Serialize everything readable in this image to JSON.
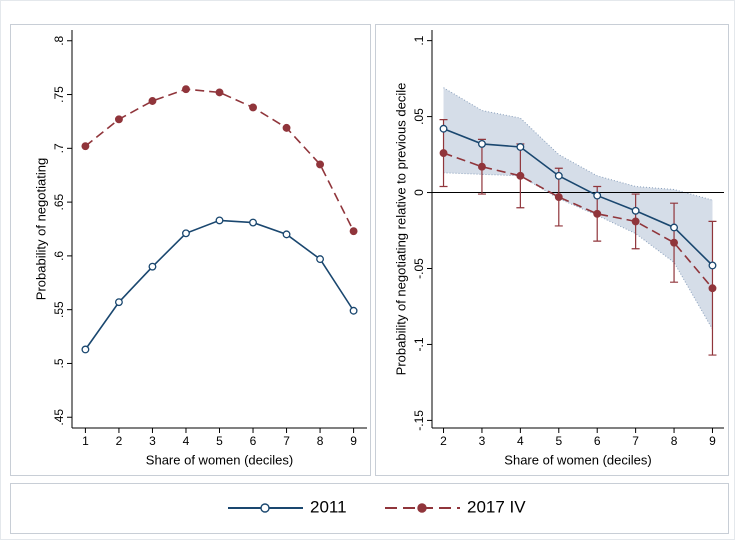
{
  "chart_data": [
    {
      "type": "line",
      "xlabel": "Share of women (deciles)",
      "ylabel": "Probability of negotiating",
      "x": [
        1,
        2,
        3,
        4,
        5,
        6,
        7,
        8,
        9
      ],
      "series": [
        {
          "name": "2011",
          "color": "#1a476f",
          "marker": "hollow",
          "dash": "solid",
          "values": [
            0.513,
            0.557,
            0.59,
            0.621,
            0.633,
            0.631,
            0.62,
            0.597,
            0.549
          ]
        },
        {
          "name": "2017 IV",
          "color": "#90353b",
          "marker": "filled",
          "dash": "dashed",
          "values": [
            0.702,
            0.727,
            0.744,
            0.755,
            0.752,
            0.738,
            0.719,
            0.685,
            0.623
          ]
        }
      ],
      "xlim": [
        0.6,
        9.4
      ],
      "ylim": [
        0.44,
        0.81
      ],
      "xticks": [
        1,
        2,
        3,
        4,
        5,
        6,
        7,
        8,
        9
      ],
      "yticks": [
        {
          "value": 0.45,
          "label": ".45"
        },
        {
          "value": 0.5,
          "label": ".5"
        },
        {
          "value": 0.55,
          "label": ".55"
        },
        {
          "value": 0.6,
          "label": ".6"
        },
        {
          "value": 0.65,
          "label": ".65"
        },
        {
          "value": 0.7,
          "label": ".7"
        },
        {
          "value": 0.75,
          "label": ".75"
        },
        {
          "value": 0.8,
          "label": ".8"
        }
      ],
      "grid": false
    },
    {
      "type": "line",
      "xlabel": "Share of women (deciles)",
      "ylabel": "Probability of negotiating relative to previous decile",
      "x": [
        2,
        3,
        4,
        5,
        6,
        7,
        8,
        9
      ],
      "series": [
        {
          "color": "#1a476f",
          "marker": "hollow",
          "dash": "solid",
          "values": [
            0.042,
            0.032,
            0.03,
            0.011,
            -0.002,
            -0.012,
            -0.023,
            -0.048
          ],
          "ci_lower": [
            0.013,
            0.012,
            0.011,
            -0.004,
            -0.015,
            -0.027,
            -0.046,
            -0.09
          ],
          "ci_upper": [
            0.069,
            0.054,
            0.049,
            0.025,
            0.011,
            0.004,
            0.002,
            -0.005
          ],
          "ci_color": "#d5dde8"
        },
        {
          "color": "#90353b",
          "marker": "filled",
          "dash": "dashed",
          "values": [
            0.026,
            0.017,
            0.011,
            -0.003,
            -0.014,
            -0.019,
            -0.033,
            -0.063
          ],
          "errors": [
            0.022,
            0.018,
            0.021,
            0.019,
            0.018,
            0.018,
            0.026,
            0.044
          ]
        }
      ],
      "hline": 0,
      "xlim": [
        1.7,
        9.3
      ],
      "ylim": [
        -0.155,
        0.107
      ],
      "xticks": [
        2,
        3,
        4,
        5,
        6,
        7,
        8,
        9
      ],
      "yticks": [
        {
          "value": -0.15,
          "label": "-.15"
        },
        {
          "value": -0.1,
          "label": "-.1"
        },
        {
          "value": -0.05,
          "label": "-.05"
        },
        0,
        {
          "value": 0.05,
          "label": ".05"
        },
        {
          "value": 0.1,
          "label": ".1"
        }
      ],
      "grid": false
    }
  ]
}
